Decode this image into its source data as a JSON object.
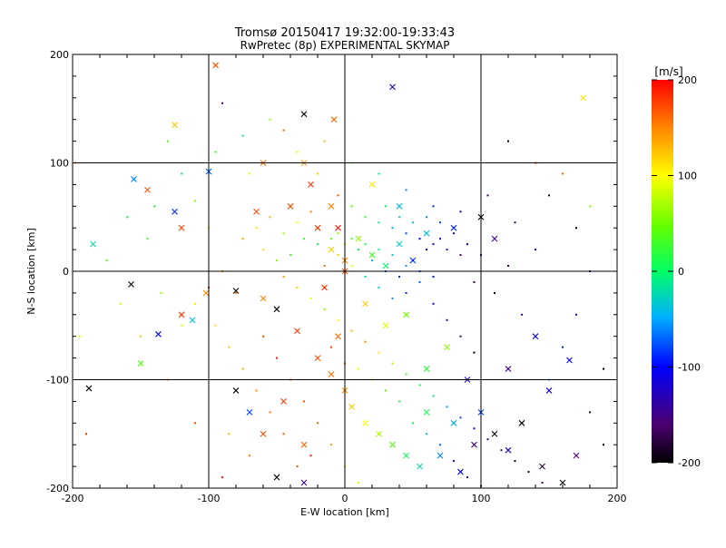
{
  "chart_data": {
    "type": "scatter",
    "title": "Tromsø 20150417 19:32:00-19:33:43",
    "subtitle": "RwPretec (8p) EXPERIMENTAL SKYMAP",
    "xlabel": "E-W location [km]",
    "ylabel": "N-S location [km]",
    "xlim": [
      -200,
      200
    ],
    "ylim": [
      -200,
      200
    ],
    "x_ticks": [
      "-200",
      "-100",
      "0",
      "100",
      "200"
    ],
    "y_ticks": [
      "-200",
      "-100",
      "0",
      "100",
      "200"
    ],
    "grid": true,
    "colorbar": {
      "label": "[m/s]",
      "range": [
        -200,
        200
      ],
      "ticks": [
        "-200",
        "-100",
        "0",
        "100",
        "200"
      ]
    },
    "series": [
      {
        "marker": "x",
        "points": [
          [
            -95,
            190,
            170
          ],
          [
            -8,
            140,
            160
          ],
          [
            -30,
            145,
            -200
          ],
          [
            35,
            170,
            -120
          ],
          [
            175,
            160,
            110
          ],
          [
            -125,
            135,
            120
          ],
          [
            -155,
            85,
            -60
          ],
          [
            -145,
            75,
            170
          ],
          [
            -125,
            55,
            -90
          ],
          [
            -120,
            40,
            170
          ],
          [
            -100,
            92,
            -70
          ],
          [
            -185,
            25,
            -20
          ],
          [
            -188,
            -108,
            -200
          ],
          [
            -157,
            -12,
            -200
          ],
          [
            -137,
            -58,
            -100
          ],
          [
            -150,
            -85,
            40
          ],
          [
            -120,
            -40,
            180
          ],
          [
            -112,
            -45,
            -40
          ],
          [
            -102,
            -20,
            150
          ],
          [
            -80,
            -18,
            -200
          ],
          [
            -60,
            -25,
            150
          ],
          [
            -50,
            -35,
            -200
          ],
          [
            -20,
            40,
            180
          ],
          [
            -10,
            20,
            120
          ],
          [
            0,
            10,
            150
          ],
          [
            10,
            30,
            60
          ],
          [
            20,
            15,
            30
          ],
          [
            30,
            5,
            0
          ],
          [
            40,
            25,
            -30
          ],
          [
            50,
            10,
            -80
          ],
          [
            60,
            35,
            -40
          ],
          [
            80,
            40,
            -90
          ],
          [
            100,
            50,
            -200
          ],
          [
            110,
            30,
            -150
          ],
          [
            -35,
            -55,
            180
          ],
          [
            -20,
            -80,
            170
          ],
          [
            -10,
            -95,
            160
          ],
          [
            0,
            -110,
            140
          ],
          [
            5,
            -125,
            120
          ],
          [
            15,
            -140,
            100
          ],
          [
            25,
            -150,
            70
          ],
          [
            35,
            -160,
            40
          ],
          [
            45,
            -170,
            10
          ],
          [
            55,
            -180,
            -20
          ],
          [
            70,
            -170,
            -60
          ],
          [
            85,
            -185,
            -100
          ],
          [
            95,
            -160,
            -150
          ],
          [
            110,
            -150,
            -200
          ],
          [
            130,
            -140,
            -200
          ],
          [
            145,
            -180,
            -180
          ],
          [
            160,
            -195,
            -200
          ],
          [
            170,
            -170,
            -160
          ],
          [
            150,
            -110,
            -120
          ],
          [
            -80,
            -110,
            -200
          ],
          [
            -60,
            -150,
            170
          ],
          [
            -45,
            -120,
            180
          ],
          [
            -30,
            -160,
            160
          ],
          [
            -70,
            -130,
            -80
          ],
          [
            -50,
            -190,
            -200
          ],
          [
            -30,
            -195,
            -150
          ],
          [
            60,
            -90,
            20
          ],
          [
            75,
            -70,
            60
          ],
          [
            90,
            -100,
            -120
          ],
          [
            120,
            -90,
            -150
          ],
          [
            165,
            -82,
            -100
          ],
          [
            140,
            -60,
            -110
          ],
          [
            -25,
            80,
            180
          ],
          [
            -40,
            60,
            170
          ],
          [
            -10,
            60,
            150
          ],
          [
            20,
            80,
            110
          ],
          [
            40,
            60,
            -40
          ],
          [
            -60,
            100,
            160
          ],
          [
            -30,
            100,
            140
          ],
          [
            0,
            0,
            170
          ],
          [
            -15,
            -15,
            180
          ],
          [
            15,
            -30,
            120
          ],
          [
            30,
            -50,
            90
          ],
          [
            45,
            -40,
            50
          ],
          [
            -5,
            -60,
            160
          ],
          [
            60,
            -130,
            10
          ],
          [
            80,
            -140,
            -50
          ],
          [
            100,
            -130,
            -80
          ],
          [
            120,
            -165,
            -120
          ],
          [
            -65,
            55,
            175
          ],
          [
            -5,
            40,
            190
          ]
        ]
      },
      {
        "marker": "dot",
        "points": [
          [
            -90,
            155,
            -150
          ],
          [
            -45,
            130,
            160
          ],
          [
            -20,
            90,
            120
          ],
          [
            -70,
            90,
            90
          ],
          [
            -130,
            120,
            40
          ],
          [
            -110,
            65,
            60
          ],
          [
            -100,
            40,
            80
          ],
          [
            -75,
            30,
            140
          ],
          [
            -60,
            20,
            110
          ],
          [
            -50,
            10,
            60
          ],
          [
            -40,
            15,
            30
          ],
          [
            -30,
            30,
            20
          ],
          [
            -20,
            25,
            10
          ],
          [
            -10,
            30,
            40
          ],
          [
            0,
            25,
            80
          ],
          [
            10,
            20,
            0
          ],
          [
            20,
            10,
            -40
          ],
          [
            30,
            0,
            -70
          ],
          [
            40,
            -5,
            -90
          ],
          [
            50,
            10,
            -110
          ],
          [
            60,
            20,
            -100
          ],
          [
            70,
            30,
            -130
          ],
          [
            85,
            15,
            -160
          ],
          [
            95,
            -10,
            -180
          ],
          [
            110,
            -20,
            -200
          ],
          [
            120,
            5,
            -170
          ],
          [
            130,
            -40,
            -150
          ],
          [
            140,
            20,
            -120
          ],
          [
            -45,
            -5,
            140
          ],
          [
            -35,
            -15,
            120
          ],
          [
            -25,
            -25,
            90
          ],
          [
            -15,
            -35,
            60
          ],
          [
            -5,
            -45,
            100
          ],
          [
            5,
            -55,
            130
          ],
          [
            15,
            -65,
            150
          ],
          [
            25,
            -75,
            110
          ],
          [
            35,
            -85,
            70
          ],
          [
            45,
            -95,
            40
          ],
          [
            55,
            -105,
            10
          ],
          [
            65,
            -115,
            -20
          ],
          [
            75,
            -125,
            -50
          ],
          [
            85,
            -135,
            -80
          ],
          [
            95,
            -145,
            -110
          ],
          [
            105,
            -155,
            -140
          ],
          [
            115,
            -165,
            -170
          ],
          [
            125,
            -175,
            -200
          ],
          [
            135,
            -185,
            -190
          ],
          [
            145,
            -195,
            -160
          ],
          [
            -60,
            -60,
            170
          ],
          [
            -50,
            -80,
            190
          ],
          [
            -40,
            -100,
            180
          ],
          [
            -30,
            -120,
            170
          ],
          [
            -20,
            -140,
            160
          ],
          [
            -10,
            -160,
            140
          ],
          [
            0,
            -180,
            110
          ],
          [
            10,
            -195,
            80
          ],
          [
            -70,
            -170,
            150
          ],
          [
            -85,
            -150,
            130
          ],
          [
            -90,
            -190,
            190
          ],
          [
            -110,
            -140,
            170
          ],
          [
            -130,
            -100,
            150
          ],
          [
            -150,
            -60,
            120
          ],
          [
            -165,
            -30,
            80
          ],
          [
            -175,
            10,
            40
          ],
          [
            -140,
            60,
            20
          ],
          [
            -120,
            90,
            0
          ],
          [
            -95,
            110,
            30
          ],
          [
            -75,
            125,
            -20
          ],
          [
            -55,
            140,
            60
          ],
          [
            -35,
            110,
            90
          ],
          [
            -15,
            120,
            130
          ],
          [
            5,
            100,
            50
          ],
          [
            25,
            90,
            -10
          ],
          [
            45,
            75,
            -60
          ],
          [
            65,
            60,
            -90
          ],
          [
            85,
            55,
            -120
          ],
          [
            105,
            70,
            -150
          ],
          [
            125,
            45,
            -170
          ],
          [
            150,
            70,
            -190
          ],
          [
            170,
            40,
            -200
          ],
          [
            180,
            0,
            -150
          ],
          [
            170,
            -40,
            -120
          ],
          [
            160,
            -70,
            -90
          ],
          [
            150,
            -100,
            -60
          ],
          [
            180,
            -130,
            -180
          ],
          [
            190,
            -160,
            -200
          ],
          [
            -5,
            70,
            170
          ],
          [
            5,
            60,
            40
          ],
          [
            15,
            50,
            20
          ],
          [
            25,
            45,
            -20
          ],
          [
            35,
            40,
            -50
          ],
          [
            45,
            35,
            -80
          ],
          [
            55,
            30,
            -100
          ],
          [
            65,
            25,
            -120
          ],
          [
            75,
            20,
            -140
          ],
          [
            -25,
            55,
            150
          ],
          [
            -35,
            45,
            100
          ],
          [
            -45,
            35,
            70
          ],
          [
            -55,
            50,
            130
          ],
          [
            -65,
            40,
            110
          ],
          [
            -15,
            5,
            160
          ],
          [
            -5,
            15,
            120
          ],
          [
            5,
            5,
            90
          ],
          [
            15,
            -5,
            -10
          ],
          [
            25,
            -15,
            -30
          ],
          [
            35,
            -25,
            -60
          ],
          [
            45,
            -20,
            -90
          ],
          [
            55,
            -10,
            -70
          ],
          [
            65,
            -30,
            -110
          ],
          [
            75,
            -45,
            -140
          ],
          [
            85,
            -60,
            -170
          ],
          [
            95,
            -75,
            -200
          ],
          [
            -80,
            -20,
            160
          ],
          [
            -90,
            0,
            140
          ],
          [
            -100,
            -15,
            180
          ],
          [
            -110,
            -30,
            110
          ],
          [
            -120,
            -50,
            90
          ],
          [
            -135,
            -20,
            60
          ],
          [
            -145,
            30,
            30
          ],
          [
            -160,
            50,
            10
          ],
          [
            -10,
            -70,
            175
          ],
          [
            0,
            -85,
            150
          ],
          [
            10,
            -90,
            95
          ],
          [
            20,
            -100,
            75
          ],
          [
            30,
            -110,
            45
          ],
          [
            40,
            -120,
            25
          ],
          [
            50,
            -140,
            0
          ],
          [
            60,
            -150,
            -30
          ],
          [
            70,
            -160,
            -70
          ],
          [
            80,
            -175,
            -100
          ],
          [
            90,
            -190,
            -130
          ],
          [
            100,
            -198,
            -160
          ],
          [
            -25,
            -170,
            185
          ],
          [
            -35,
            -180,
            175
          ],
          [
            -45,
            -150,
            165
          ],
          [
            -55,
            -130,
            155
          ],
          [
            -65,
            -110,
            145
          ],
          [
            -75,
            -90,
            135
          ],
          [
            -85,
            -70,
            125
          ],
          [
            -95,
            -50,
            115
          ],
          [
            30,
            60,
            0
          ],
          [
            40,
            50,
            -20
          ],
          [
            50,
            45,
            -40
          ],
          [
            60,
            50,
            -60
          ],
          [
            70,
            45,
            -80
          ],
          [
            80,
            35,
            -100
          ],
          [
            90,
            25,
            -120
          ],
          [
            100,
            15,
            -140
          ],
          [
            -5,
            35,
            60
          ],
          [
            5,
            30,
            30
          ],
          [
            15,
            25,
            10
          ],
          [
            25,
            20,
            -10
          ],
          [
            35,
            15,
            -35
          ],
          [
            45,
            5,
            -55
          ],
          [
            55,
            0,
            -75
          ],
          [
            65,
            -5,
            -95
          ],
          [
            120,
            120,
            -200
          ],
          [
            140,
            100,
            180
          ],
          [
            160,
            90,
            160
          ],
          [
            180,
            60,
            60
          ],
          [
            190,
            -90,
            -200
          ],
          [
            -190,
            -150,
            180
          ],
          [
            -195,
            -60,
            110
          ],
          [
            -198,
            100,
            140
          ]
        ]
      }
    ]
  }
}
